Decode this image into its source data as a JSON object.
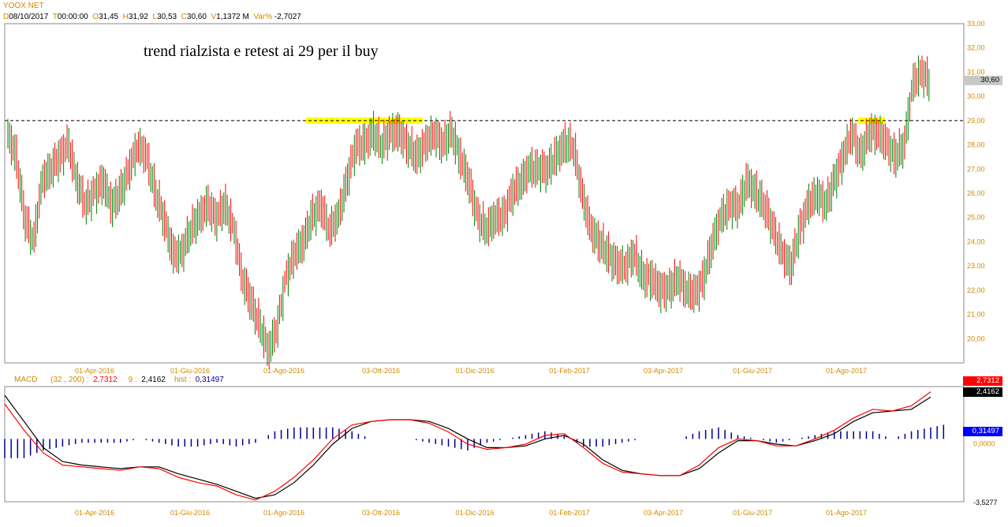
{
  "chart_data": [
    {
      "type": "candlestick",
      "title": "YOOX NET",
      "header": {
        "d_label": "D",
        "date": "08/10/2017",
        "t_label": "T",
        "time": "00:00:00",
        "o_label": "O",
        "open": "31,45",
        "h_label": "H",
        "high": "31,92",
        "l_label": "L",
        "low": "30,53",
        "c_label": "C",
        "close": "30,60",
        "v_label": "V",
        "volume": "1,1372 M",
        "var_label": "Var%",
        "var": "-2,7027"
      },
      "annotation": "trend rialzista e retest ai 29 per il buy",
      "ylim": [
        19,
        33
      ],
      "y_ticks": [
        "20,00",
        "21,00",
        "22,00",
        "23,00",
        "24,00",
        "25,00",
        "26,00",
        "27,00",
        "28,00",
        "29,00",
        "30,00",
        "31,00",
        "32,00",
        "33,00"
      ],
      "last_price_tag": "30,60",
      "x_ticks": [
        "01-Apr-2016",
        "01-Giu-2016",
        "01-Ago-2016",
        "03-Ott-2016",
        "01-Dic-2016",
        "01-Feb-2017",
        "03-Apr-2017",
        "01-Giu-2017",
        "01-Ago-2017"
      ],
      "horizontal_line": 29,
      "highlight_zones": [
        {
          "from": "01-Set-2016",
          "to": "15-Nov-2016",
          "y": 29
        },
        {
          "from": "15-Ago-2017",
          "to": "01-Set-2017",
          "y": 29
        }
      ],
      "weekly_close_approx": [
        28.5,
        27.5,
        25.0,
        24.0,
        26.5,
        27.0,
        27.5,
        28.0,
        26.5,
        25.5,
        26.0,
        26.5,
        25.5,
        26.0,
        27.0,
        28.0,
        27.5,
        26.0,
        25.0,
        23.5,
        23.5,
        24.5,
        25.0,
        25.5,
        25.0,
        25.5,
        24.5,
        22.5,
        21.5,
        20.5,
        19.5,
        20.5,
        22.5,
        23.5,
        24.0,
        25.0,
        25.5,
        24.5,
        25.0,
        26.5,
        28.0,
        28.0,
        28.5,
        28.0,
        28.5,
        28.5,
        28.0,
        27.5,
        28.0,
        28.5,
        28.0,
        28.5,
        27.5,
        26.5,
        25.0,
        24.5,
        25.0,
        25.0,
        26.0,
        26.5,
        27.0,
        27.0,
        27.0,
        27.5,
        28.0,
        28.0,
        26.0,
        24.5,
        24.0,
        23.5,
        23.0,
        23.0,
        23.5,
        22.5,
        22.5,
        22.0,
        22.0,
        22.5,
        22.0,
        21.8,
        22.5,
        24.0,
        25.0,
        25.5,
        25.5,
        26.5,
        26.0,
        25.5,
        24.5,
        23.5,
        23.0,
        24.5,
        25.5,
        26.0,
        25.5,
        26.5,
        27.5,
        28.5,
        27.5,
        28.5,
        28.5,
        28.0,
        27.5,
        28.0,
        30.5,
        31.0,
        30.6
      ],
      "macd": {
        "label": "MACD",
        "params": "(32 , 200)",
        "params_sep": ":",
        "macd_value": "2,7312",
        "signal_label": "9",
        "signal_sep": ":",
        "signal_value": "2,4162",
        "hist_label": "hist",
        "hist_sep": ":",
        "hist_value": "0,31497",
        "axis_bottom": "-3,5277",
        "axis_zero": "0,0000",
        "tags": [
          "2,7312",
          "2,4162",
          "0,31497"
        ],
        "macd_line_approx": [
          2.0,
          0.5,
          -0.8,
          -1.5,
          -1.6,
          -1.7,
          -1.8,
          -1.6,
          -1.7,
          -2.2,
          -2.5,
          -2.7,
          -3.2,
          -3.5,
          -3.0,
          -2.2,
          -1.2,
          0.0,
          0.8,
          1.0,
          1.1,
          1.1,
          0.9,
          0.4,
          -0.3,
          -0.6,
          -0.5,
          -0.3,
          0.2,
          0.3,
          -0.5,
          -1.4,
          -1.9,
          -2.0,
          -2.1,
          -2.1,
          -1.5,
          -0.5,
          0.0,
          -0.1,
          -0.4,
          -0.4,
          0.0,
          0.5,
          1.2,
          1.7,
          1.6,
          1.9,
          2.7
        ],
        "signal_line_approx": [
          2.5,
          1.0,
          -0.5,
          -1.3,
          -1.5,
          -1.6,
          -1.7,
          -1.6,
          -1.6,
          -2.0,
          -2.3,
          -2.6,
          -3.0,
          -3.4,
          -3.2,
          -2.5,
          -1.5,
          -0.3,
          0.6,
          1.0,
          1.1,
          1.1,
          1.0,
          0.6,
          0.0,
          -0.5,
          -0.5,
          -0.4,
          0.0,
          0.2,
          -0.3,
          -1.2,
          -1.8,
          -2.0,
          -2.1,
          -2.1,
          -1.7,
          -0.8,
          -0.1,
          -0.1,
          -0.3,
          -0.4,
          -0.1,
          0.3,
          1.0,
          1.5,
          1.6,
          1.7,
          2.4
        ]
      },
      "colors": {
        "up": "#008000",
        "down": "#ff0000",
        "macd": "#ff0000",
        "signal": "#000000",
        "hist": "#00008b",
        "highlight": "#ffff00",
        "axis_text": "#d08a00"
      }
    }
  ]
}
